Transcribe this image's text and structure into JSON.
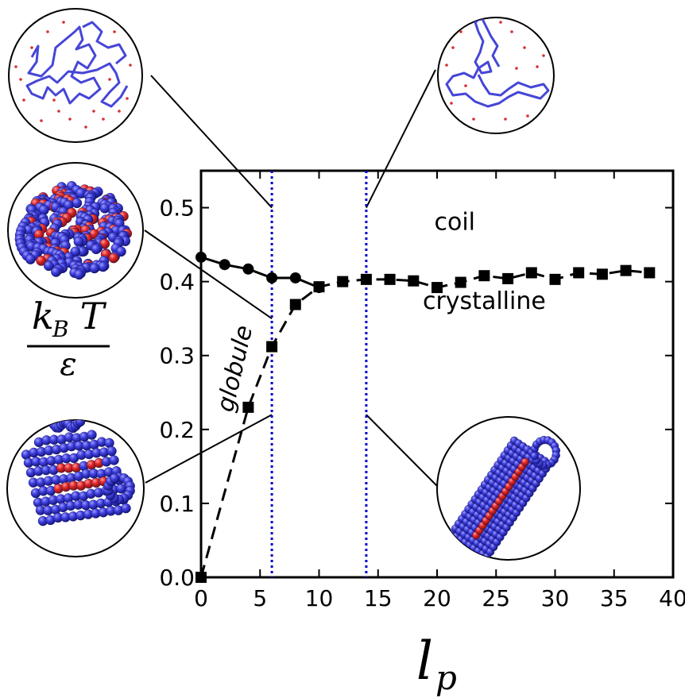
{
  "chart_data": {
    "type": "scatter",
    "xlabel": "l",
    "xlabel_sub": "p",
    "ylabel": {
      "numerator_main": "k",
      "numerator_sub": "B",
      "numerator_tail": " T",
      "denominator": "ε"
    },
    "xlim": [
      0,
      40
    ],
    "ylim": [
      0,
      0.55
    ],
    "xticks": [
      0,
      5,
      10,
      15,
      20,
      25,
      30,
      35,
      40
    ],
    "xtick_labels": [
      "0",
      "5",
      "10",
      "15",
      "20",
      "25",
      "30",
      "35",
      "40"
    ],
    "yticks": [
      0.0,
      0.1,
      0.2,
      0.3,
      0.4,
      0.5
    ],
    "ytick_labels": [
      "0.0",
      "0.1",
      "0.2",
      "0.3",
      "0.4",
      "0.5"
    ],
    "grid": false,
    "series": [
      {
        "marker": "circle",
        "line": "solid",
        "color": "#000000",
        "x": [
          0,
          2,
          4,
          6,
          8,
          10
        ],
        "y": [
          0.433,
          0.423,
          0.417,
          0.405,
          0.405,
          0.392
        ]
      },
      {
        "marker": "square",
        "line": "dashed",
        "color": "#000000",
        "x": [
          0,
          4,
          6,
          8,
          10,
          12,
          14,
          16,
          18,
          20,
          22,
          24,
          26,
          28,
          30,
          32,
          34,
          36,
          38
        ],
        "y": [
          0.0,
          0.23,
          0.312,
          0.369,
          0.393,
          0.4,
          0.403,
          0.403,
          0.401,
          0.392,
          0.399,
          0.408,
          0.404,
          0.412,
          0.403,
          0.412,
          0.41,
          0.415,
          0.412
        ]
      }
    ],
    "vertical_lines": [
      {
        "x": 6,
        "style": "dotted",
        "color": "#0000cc"
      },
      {
        "x": 14,
        "style": "dotted",
        "color": "#0000cc"
      }
    ],
    "annotations": [
      {
        "text": "coil",
        "x": 21.5,
        "y": 0.47
      },
      {
        "text": "crystalline",
        "x": 24,
        "y": 0.363
      },
      {
        "text": "globule",
        "x": 3.5,
        "y": 0.28,
        "rotation": -77
      }
    ],
    "insets": [
      {
        "name": "coil-chain-inset",
        "depicts": "coil",
        "target": [
          6,
          0.5
        ]
      },
      {
        "name": "coil-chain-inset-right",
        "depicts": "coil",
        "target": [
          14,
          0.5
        ]
      },
      {
        "name": "globule-inset",
        "depicts": "globule",
        "target": [
          6,
          0.35
        ]
      },
      {
        "name": "crystal-inset-left",
        "depicts": "crystalline",
        "target": [
          6,
          0.22
        ]
      },
      {
        "name": "crystal-inset-right",
        "depicts": "crystalline",
        "target": [
          14,
          0.22
        ]
      }
    ],
    "colors": {
      "bead_blue": "#3b3bd6",
      "bead_red": "#e0242a",
      "vline": "#0000cc"
    }
  }
}
